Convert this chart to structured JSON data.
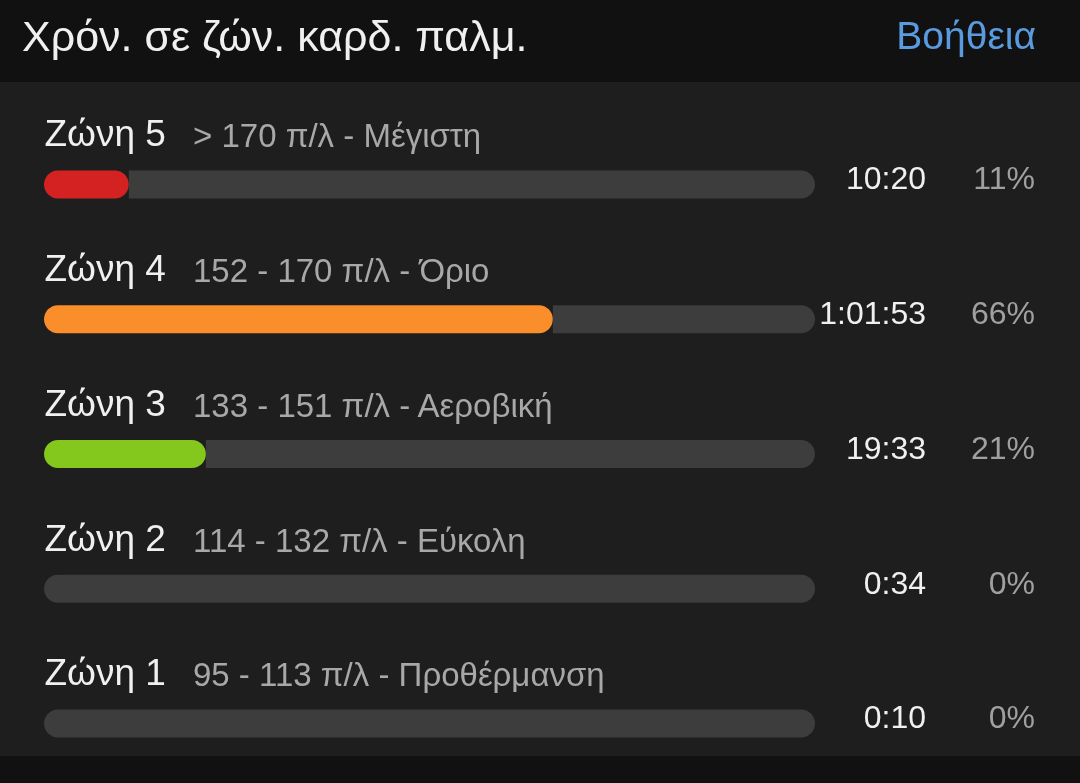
{
  "chart_data": {
    "type": "bar",
    "orientation": "horizontal",
    "stacked": true,
    "title": "Χρόν. σε ζών. καρδ. παλμ.",
    "categories": [
      "Ζώνη 5",
      "Ζώνη 4",
      "Ζώνη 3",
      "Ζώνη 2",
      "Ζώνη 1"
    ],
    "y2_categories": [
      "> 170 π/λ - Μέγιστη",
      "152 - 170 π/λ - Όριο",
      "133 - 151 π/λ - Αεροβική",
      "114 - 132 π/λ - Εύκολη",
      "95 - 113 π/λ - Προθέρμανση"
    ],
    "series": [
      {
        "colors": [
          "#d42222",
          "#f98e2b",
          "#84c81e",
          null,
          null
        ],
        "values": [
          11,
          66,
          21,
          0,
          0
        ],
        "value_labels": [
          "11%",
          "66%",
          "21%",
          "0%",
          "0%"
        ]
      },
      {
        "color": "#3d3d3d",
        "values": [
          89,
          34,
          79,
          100,
          100
        ]
      }
    ],
    "xlim": [
      0,
      100
    ],
    "tick_labels": "y",
    "annotations": [
      "Βοήθεια",
      "10:20",
      "1:01:53",
      "19:33",
      "0:34",
      "0:10"
    ]
  }
}
